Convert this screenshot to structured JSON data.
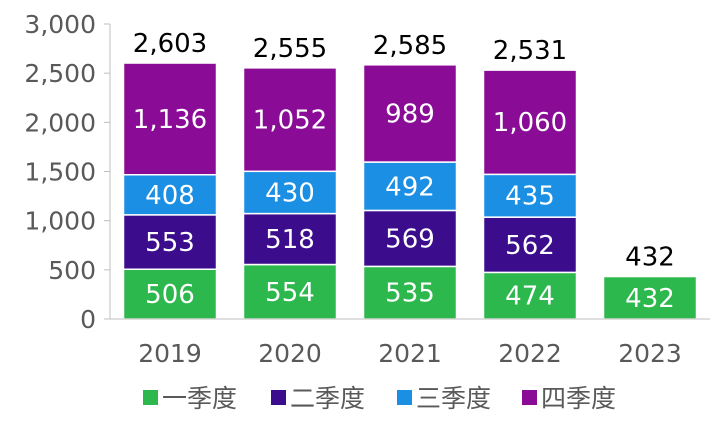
{
  "chart_data": {
    "type": "bar",
    "stacked": true,
    "categories": [
      "2019",
      "2020",
      "2021",
      "2022",
      "2023"
    ],
    "series": [
      {
        "name": "一季度",
        "color": "#2db84d",
        "values": [
          506,
          554,
          535,
          474,
          432
        ]
      },
      {
        "name": "二季度",
        "color": "#3b0d8c",
        "values": [
          553,
          518,
          569,
          562,
          null
        ]
      },
      {
        "name": "三季度",
        "color": "#1a8fe3",
        "values": [
          408,
          430,
          492,
          435,
          null
        ]
      },
      {
        "name": "四季度",
        "color": "#8a0c96",
        "values": [
          1136,
          1052,
          989,
          1060,
          null
        ]
      }
    ],
    "segment_labels": [
      [
        "506",
        "553",
        "408",
        "1,136"
      ],
      [
        "554",
        "518",
        "430",
        "1,052"
      ],
      [
        "535",
        "569",
        "492",
        "989"
      ],
      [
        "474",
        "562",
        "435",
        "1,060"
      ],
      [
        "432"
      ]
    ],
    "totals": [
      2603,
      2555,
      2585,
      2531,
      432
    ],
    "total_labels": [
      "2,603",
      "2,555",
      "2,585",
      "2,531",
      "432"
    ],
    "ylim": [
      0,
      3000
    ],
    "yticks": [
      0,
      500,
      1000,
      1500,
      2000,
      2500,
      3000
    ],
    "ytick_labels": [
      "0",
      "500",
      "1,000",
      "1,500",
      "2,000",
      "2,500",
      "3,000"
    ],
    "title": "",
    "xlabel": "",
    "ylabel": "",
    "grid": false,
    "legend_position": "bottom"
  }
}
